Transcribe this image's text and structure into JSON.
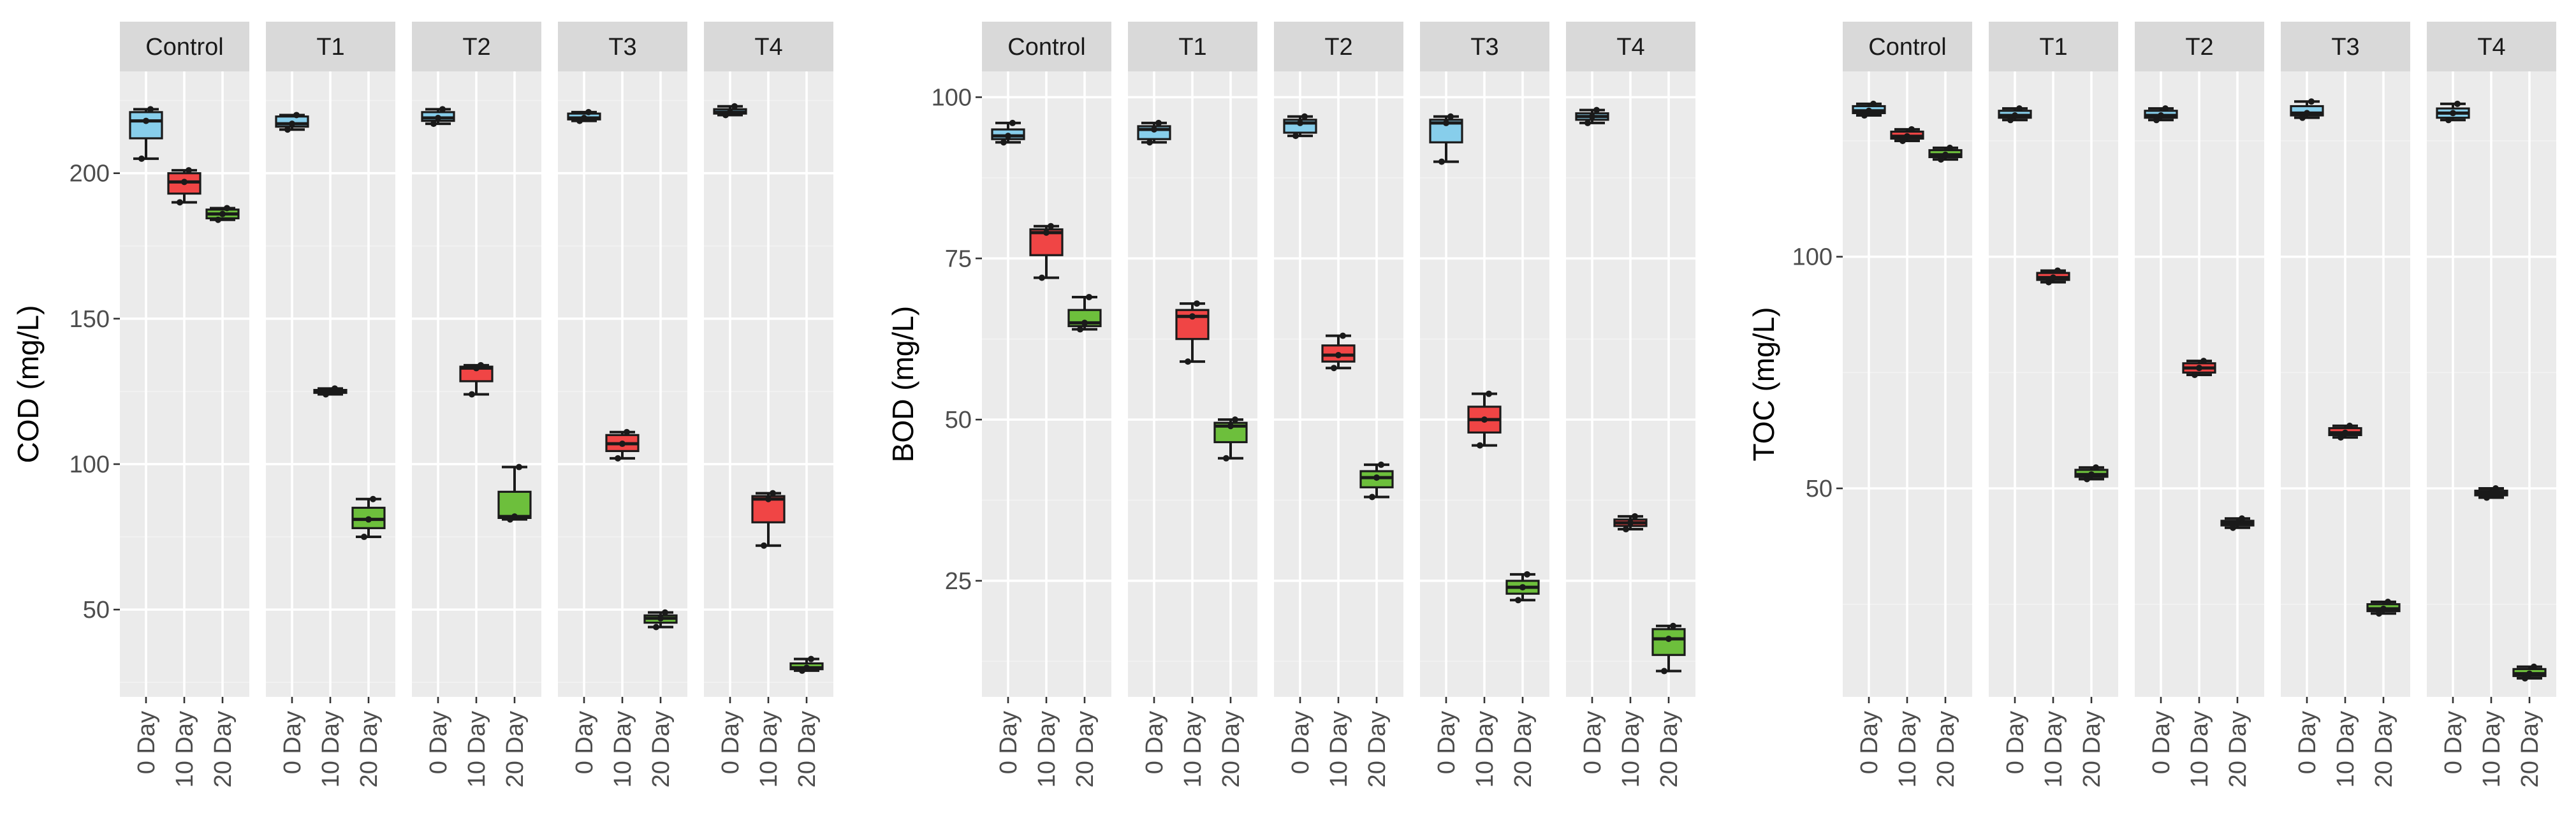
{
  "colors": {
    "0 Day": "#87ceeb",
    "10 Day": "#f04545",
    "20 Day": "#6dbf3c",
    "panel_background": "#ebebeb",
    "strip_background": "#d9d9d9"
  },
  "chart_data": [
    {
      "type": "boxplot",
      "id": "cod",
      "ylabel": "COD (mg/L)",
      "ylim": [
        20,
        235
      ],
      "yticks": [
        50,
        100,
        150,
        200
      ],
      "ytick_labels": [
        "50",
        "100",
        "150",
        "200"
      ],
      "categories": [
        "0 Day",
        "10 Day",
        "20 Day"
      ],
      "facets": [
        {
          "label": "Control",
          "boxes": [
            {
              "category": "0 Day",
              "min": 205,
              "q1": 212,
              "median": 218,
              "q3": 221,
              "max": 222,
              "points": [
                205,
                218,
                222
              ]
            },
            {
              "category": "10 Day",
              "min": 190,
              "q1": 193,
              "median": 197,
              "q3": 200,
              "max": 201,
              "points": [
                190,
                197,
                201
              ]
            },
            {
              "category": "20 Day",
              "min": 184,
              "q1": 184.5,
              "median": 186,
              "q3": 187.5,
              "max": 188,
              "points": [
                184,
                186,
                188
              ]
            }
          ]
        },
        {
          "label": "T1",
          "boxes": [
            {
              "category": "0 Day",
              "min": 215,
              "q1": 216,
              "median": 217,
              "q3": 219.5,
              "max": 220,
              "points": [
                215,
                217,
                220
              ]
            },
            {
              "category": "10 Day",
              "min": 124,
              "q1": 124.5,
              "median": 125,
              "q3": 125.5,
              "max": 126,
              "points": [
                124,
                125,
                126
              ]
            },
            {
              "category": "20 Day",
              "min": 75,
              "q1": 78,
              "median": 81,
              "q3": 85,
              "max": 88,
              "points": [
                75,
                81,
                88
              ]
            }
          ]
        },
        {
          "label": "T2",
          "boxes": [
            {
              "category": "0 Day",
              "min": 217,
              "q1": 218,
              "median": 219,
              "q3": 221,
              "max": 222,
              "points": [
                217,
                219,
                222
              ]
            },
            {
              "category": "10 Day",
              "min": 124,
              "q1": 128.5,
              "median": 133,
              "q3": 133.5,
              "max": 134,
              "points": [
                124,
                133,
                134
              ]
            },
            {
              "category": "20 Day",
              "min": 81,
              "q1": 81.5,
              "median": 82,
              "q3": 90.5,
              "max": 99,
              "points": [
                81,
                82,
                99
              ]
            }
          ]
        },
        {
          "label": "T3",
          "boxes": [
            {
              "category": "0 Day",
              "min": 218,
              "q1": 218.5,
              "median": 219,
              "q3": 220.5,
              "max": 221,
              "points": [
                218,
                219,
                221
              ]
            },
            {
              "category": "10 Day",
              "min": 102,
              "q1": 104.5,
              "median": 107,
              "q3": 110,
              "max": 111,
              "points": [
                102,
                107,
                111
              ]
            },
            {
              "category": "20 Day",
              "min": 44,
              "q1": 45.5,
              "median": 47,
              "q3": 48,
              "max": 49,
              "points": [
                44,
                47,
                49
              ]
            }
          ]
        },
        {
          "label": "T4",
          "boxes": [
            {
              "category": "0 Day",
              "min": 220,
              "q1": 220.5,
              "median": 221,
              "q3": 222,
              "max": 223,
              "points": [
                220,
                221,
                223
              ]
            },
            {
              "category": "10 Day",
              "min": 72,
              "q1": 80,
              "median": 88,
              "q3": 89,
              "max": 90,
              "points": [
                72,
                88,
                90
              ]
            },
            {
              "category": "20 Day",
              "min": 29,
              "q1": 29.5,
              "median": 30,
              "q3": 31.5,
              "max": 33,
              "points": [
                29,
                30,
                33
              ]
            }
          ]
        }
      ]
    },
    {
      "type": "boxplot",
      "id": "bod",
      "ylabel": "BOD (mg/L)",
      "ylim": [
        7,
        104
      ],
      "yticks": [
        25,
        50,
        75,
        100
      ],
      "ytick_labels": [
        "25",
        "50",
        "75",
        "100"
      ],
      "categories": [
        "0 Day",
        "10 Day",
        "20 Day"
      ],
      "facets": [
        {
          "label": "Control",
          "boxes": [
            {
              "category": "0 Day",
              "min": 93,
              "q1": 93.5,
              "median": 94,
              "q3": 95,
              "max": 96,
              "points": [
                93,
                94,
                96
              ]
            },
            {
              "category": "10 Day",
              "min": 72,
              "q1": 75.5,
              "median": 79,
              "q3": 79.5,
              "max": 80,
              "points": [
                72,
                79,
                80
              ]
            },
            {
              "category": "20 Day",
              "min": 64,
              "q1": 64.5,
              "median": 65,
              "q3": 67,
              "max": 69,
              "points": [
                64,
                65,
                69
              ]
            }
          ]
        },
        {
          "label": "T1",
          "boxes": [
            {
              "category": "0 Day",
              "min": 93,
              "q1": 93.5,
              "median": 95,
              "q3": 95.5,
              "max": 96,
              "points": [
                93,
                95,
                96
              ]
            },
            {
              "category": "10 Day",
              "min": 59,
              "q1": 62.5,
              "median": 66,
              "q3": 67,
              "max": 68,
              "points": [
                59,
                66,
                68
              ]
            },
            {
              "category": "20 Day",
              "min": 44,
              "q1": 46.5,
              "median": 49,
              "q3": 49.5,
              "max": 50,
              "points": [
                44,
                49,
                50
              ]
            }
          ]
        },
        {
          "label": "T2",
          "boxes": [
            {
              "category": "0 Day",
              "min": 94,
              "q1": 94.5,
              "median": 96,
              "q3": 96.5,
              "max": 97,
              "points": [
                94,
                96,
                97
              ]
            },
            {
              "category": "10 Day",
              "min": 58,
              "q1": 59,
              "median": 60,
              "q3": 61.5,
              "max": 63,
              "points": [
                58,
                60,
                63
              ]
            },
            {
              "category": "20 Day",
              "min": 38,
              "q1": 39.5,
              "median": 41,
              "q3": 42,
              "max": 43,
              "points": [
                38,
                41,
                43
              ]
            }
          ]
        },
        {
          "label": "T3",
          "boxes": [
            {
              "category": "0 Day",
              "min": 90,
              "q1": 93,
              "median": 96,
              "q3": 96.5,
              "max": 97,
              "points": [
                90,
                96,
                97
              ]
            },
            {
              "category": "10 Day",
              "min": 46,
              "q1": 48,
              "median": 50,
              "q3": 52,
              "max": 54,
              "points": [
                46,
                50,
                54
              ]
            },
            {
              "category": "20 Day",
              "min": 22,
              "q1": 23,
              "median": 24,
              "q3": 25,
              "max": 26,
              "points": [
                22,
                24,
                26
              ]
            }
          ]
        },
        {
          "label": "T4",
          "boxes": [
            {
              "category": "0 Day",
              "min": 96,
              "q1": 96.5,
              "median": 97,
              "q3": 97.5,
              "max": 98,
              "points": [
                96,
                97,
                98
              ]
            },
            {
              "category": "10 Day",
              "min": 33,
              "q1": 33.5,
              "median": 34,
              "q3": 34.5,
              "max": 35,
              "points": [
                33,
                34,
                35
              ]
            },
            {
              "category": "20 Day",
              "min": 11,
              "q1": 13.5,
              "median": 16,
              "q3": 17.5,
              "max": 18,
              "points": [
                11,
                16,
                18
              ]
            }
          ]
        }
      ]
    },
    {
      "type": "boxplot",
      "id": "toc",
      "ylabel": "TOC (mg/L)",
      "ylim": [
        5,
        140
      ],
      "yticks": [
        50,
        100
      ],
      "ytick_labels": [
        "50",
        "100"
      ],
      "categories": [
        "0 Day",
        "10 Day",
        "20 Day"
      ],
      "facets": [
        {
          "label": "Control",
          "boxes": [
            {
              "category": "0 Day",
              "min": 130.5,
              "q1": 131,
              "median": 131.5,
              "q3": 132.5,
              "max": 133,
              "points": [
                130.5,
                131.5,
                133
              ]
            },
            {
              "category": "10 Day",
              "min": 125,
              "q1": 125.5,
              "median": 126,
              "q3": 127,
              "max": 127.5,
              "points": [
                125,
                126,
                127.5
              ]
            },
            {
              "category": "20 Day",
              "min": 121,
              "q1": 121.5,
              "median": 122,
              "q3": 123,
              "max": 123.5,
              "points": [
                121,
                122,
                123.5
              ]
            }
          ]
        },
        {
          "label": "T1",
          "boxes": [
            {
              "category": "0 Day",
              "min": 129.5,
              "q1": 130,
              "median": 130.5,
              "q3": 131.5,
              "max": 132,
              "points": [
                129.5,
                130.5,
                132
              ]
            },
            {
              "category": "10 Day",
              "min": 94.5,
              "q1": 95,
              "median": 95.5,
              "q3": 96.5,
              "max": 97,
              "points": [
                94.5,
                95.5,
                97
              ]
            },
            {
              "category": "20 Day",
              "min": 52,
              "q1": 52.5,
              "median": 53,
              "q3": 54,
              "max": 54.5,
              "points": [
                52,
                53,
                54.5
              ]
            }
          ]
        },
        {
          "label": "T2",
          "boxes": [
            {
              "category": "0 Day",
              "min": 129.5,
              "q1": 130,
              "median": 130.5,
              "q3": 131.5,
              "max": 132,
              "points": [
                129.5,
                130.5,
                132
              ]
            },
            {
              "category": "10 Day",
              "min": 74.5,
              "q1": 75,
              "median": 76,
              "q3": 77,
              "max": 77.5,
              "points": [
                74.5,
                76,
                77.5
              ]
            },
            {
              "category": "20 Day",
              "min": 41.5,
              "q1": 42,
              "median": 42.5,
              "q3": 43,
              "max": 43.5,
              "points": [
                41.5,
                42.5,
                43.5
              ]
            }
          ]
        },
        {
          "label": "T3",
          "boxes": [
            {
              "category": "0 Day",
              "min": 130,
              "q1": 130.5,
              "median": 131,
              "q3": 132.5,
              "max": 133.5,
              "points": [
                130,
                131,
                133.5
              ]
            },
            {
              "category": "10 Day",
              "min": 61,
              "q1": 61.5,
              "median": 62,
              "q3": 63,
              "max": 63.5,
              "points": [
                61,
                62,
                63.5
              ]
            },
            {
              "category": "20 Day",
              "min": 23,
              "q1": 23.5,
              "median": 24,
              "q3": 25,
              "max": 25.5,
              "points": [
                23,
                24,
                25.5
              ]
            }
          ]
        },
        {
          "label": "T4",
          "boxes": [
            {
              "category": "0 Day",
              "min": 129.5,
              "q1": 130,
              "median": 131,
              "q3": 132,
              "max": 133,
              "points": [
                129.5,
                131,
                133
              ]
            },
            {
              "category": "10 Day",
              "min": 48,
              "q1": 48.5,
              "median": 49,
              "q3": 49.5,
              "max": 50,
              "points": [
                48,
                49,
                50
              ]
            },
            {
              "category": "20 Day",
              "min": 9,
              "q1": 9.5,
              "median": 10,
              "q3": 11,
              "max": 11.5,
              "points": [
                9,
                10,
                11.5
              ]
            }
          ]
        }
      ]
    }
  ]
}
